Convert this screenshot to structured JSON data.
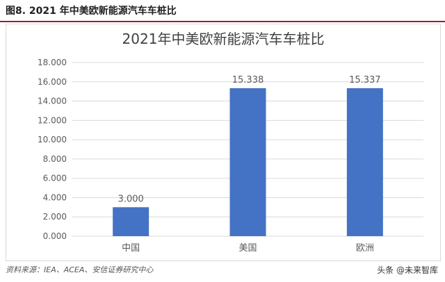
{
  "figure": {
    "caption": "图8. 2021 年中美欧新能源汽车车桩比",
    "source": "资料来源：IEA、ACEA、安信证券研究中心",
    "watermark": {
      "text": "头条 @未来智库",
      "icon": "at-icon"
    }
  },
  "colors": {
    "bar": "#4472c4",
    "grid": "#d9d9d9",
    "axis_text": "#595959",
    "title_text": "#404040",
    "caption_rule": "#a6192e"
  },
  "chart_data": {
    "type": "bar",
    "title": "2021年中美欧新能源汽车车桩比",
    "categories": [
      "中国",
      "美国",
      "欧洲"
    ],
    "values": [
      3.0,
      15.338,
      15.337
    ],
    "value_labels": [
      "3.000",
      "15.338",
      "15.337"
    ],
    "ylim": [
      0,
      18
    ],
    "ytick_labels": [
      "0.000",
      "2.000",
      "4.000",
      "6.000",
      "8.000",
      "10.000",
      "12.000",
      "14.000",
      "16.000",
      "18.000"
    ],
    "grid": true,
    "legend": "none"
  }
}
